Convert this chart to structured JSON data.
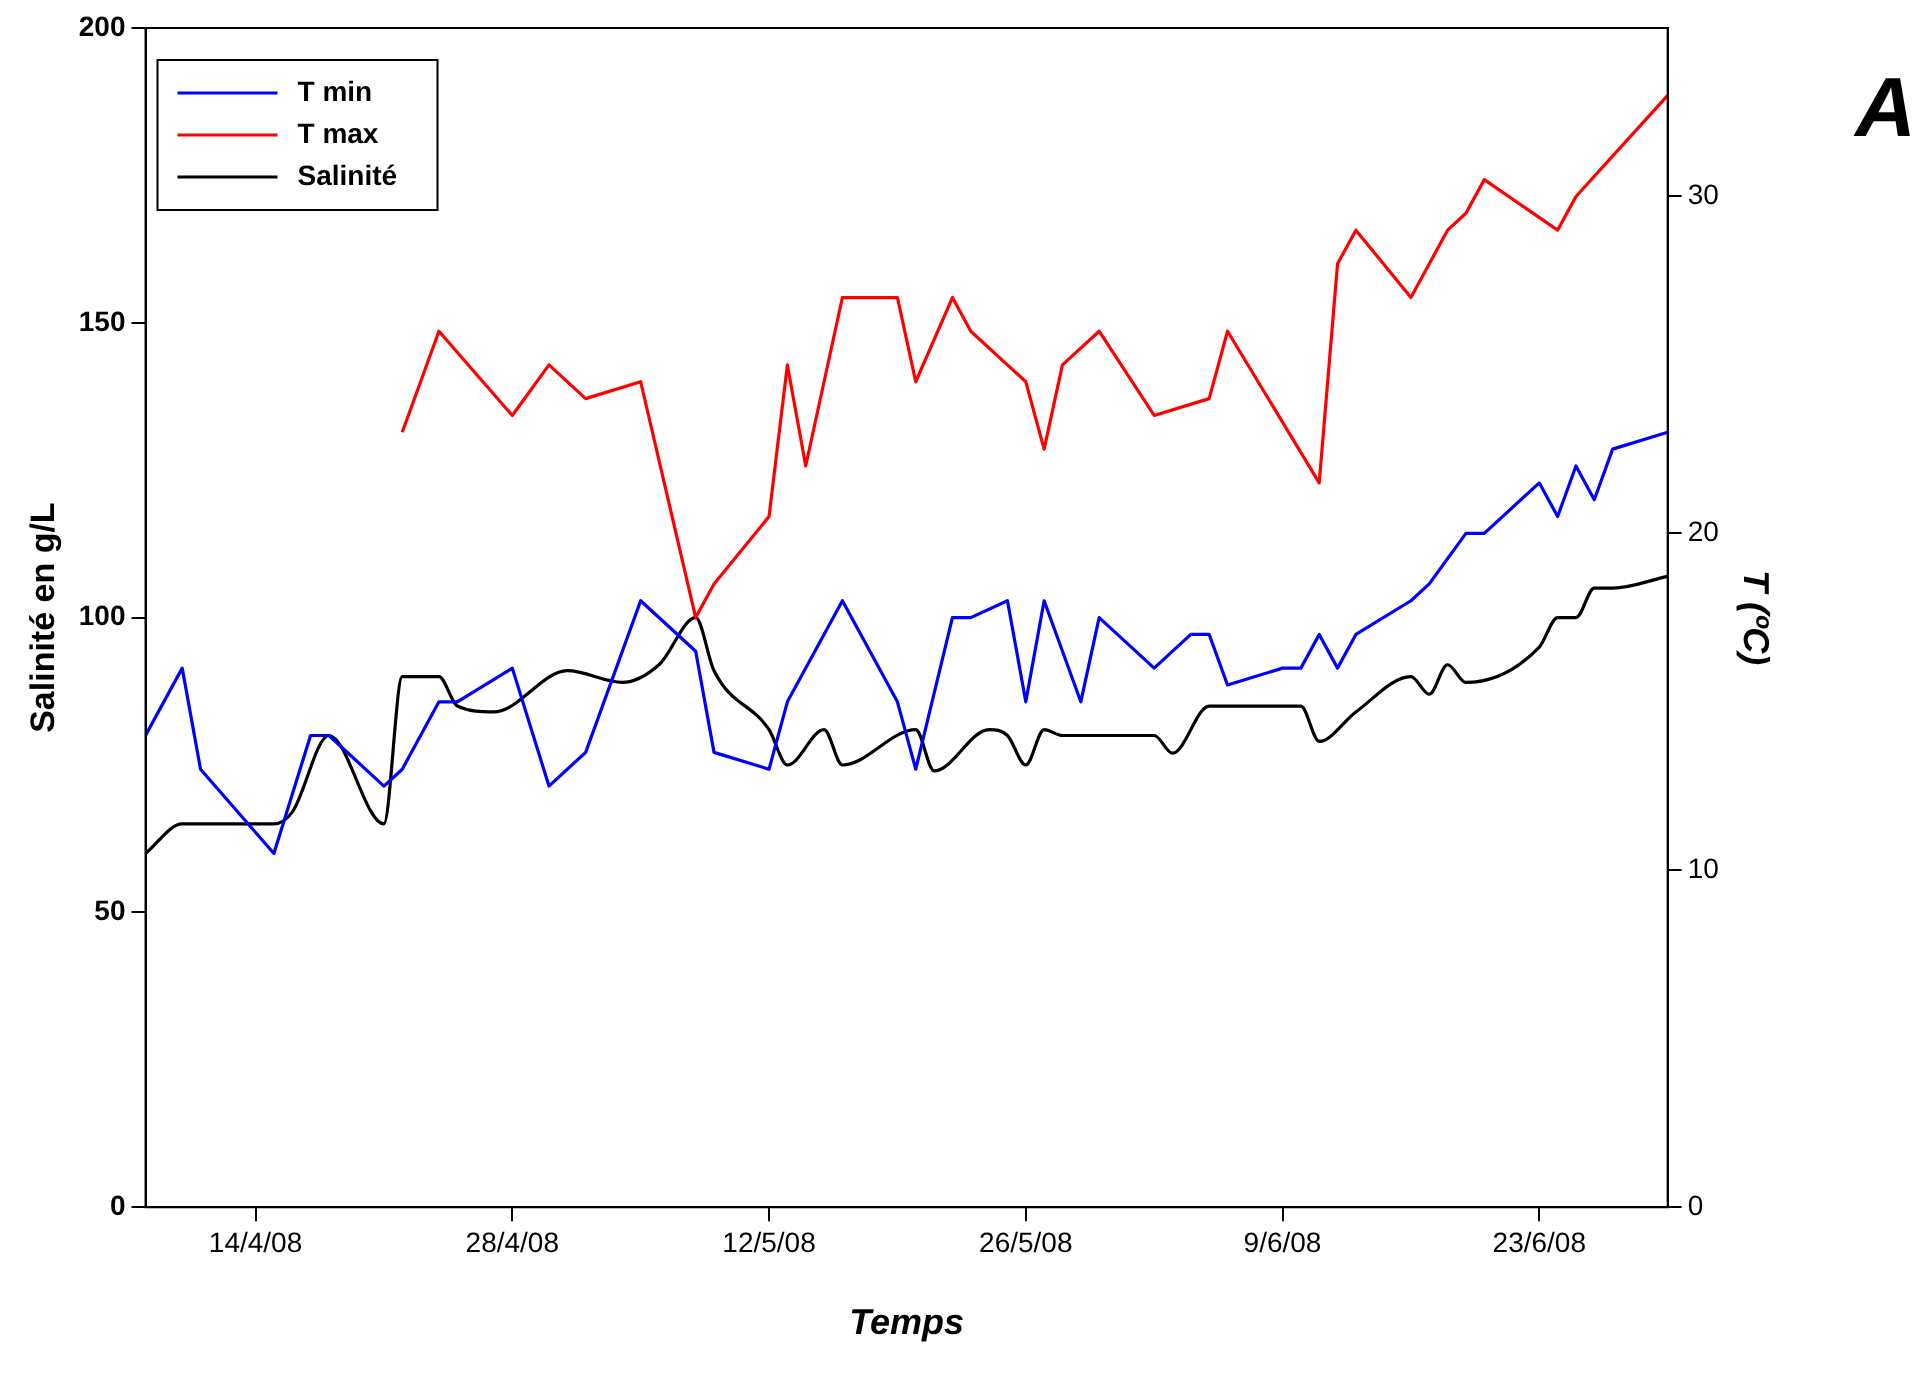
{
  "chart_data": {
    "type": "line",
    "title": "A",
    "xlabel": "Temps",
    "ylabel": "Salinité en g/L",
    "y2label": "T (ºC)",
    "xlim": [
      "--04-08",
      "--06-30"
    ],
    "xticks": [
      {
        "value": "--04-14",
        "label": "14/4/08"
      },
      {
        "value": "--04-28",
        "label": "28/4/08"
      },
      {
        "value": "--05-12",
        "label": "12/5/08"
      },
      {
        "value": "--05-26",
        "label": "26/5/08"
      },
      {
        "value": "--06-09",
        "label": "9/6/08"
      },
      {
        "value": "--06-23",
        "label": "23/6/08"
      }
    ],
    "ylim": [
      0,
      200
    ],
    "yticks": [
      0,
      50,
      100,
      150,
      200
    ],
    "y2lim": [
      0,
      35
    ],
    "y2ticks": [
      0,
      10,
      20,
      30
    ],
    "grid": false,
    "legend": "top left",
    "marker": "none",
    "line_style": "solid",
    "series": [
      {
        "name": "T min",
        "color": "#0000ff",
        "axis": "y2",
        "x": [
          "--04-08",
          "--04-10",
          "--04-11",
          "--04-15",
          "--04-17",
          "--04-18",
          "--04-21",
          "--04-22",
          "--04-24",
          "--04-25",
          "--04-28",
          "--04-30",
          "--05-02",
          "--05-05",
          "--05-08",
          "--05-09",
          "--05-12",
          "--05-13",
          "--05-16",
          "--05-19",
          "--05-20",
          "--05-22",
          "--05-23",
          "--05-25",
          "--05-26",
          "--05-27",
          "--05-29",
          "--05-30",
          "--06-02",
          "--06-04",
          "--06-05",
          "--06-06",
          "--06-09",
          "--06-10",
          "--06-11",
          "--06-12",
          "--06-13",
          "--06-16",
          "--06-17",
          "--06-19",
          "--06-20",
          "--06-23",
          "--06-24",
          "--06-25",
          "--06-26",
          "--06-27",
          "--06-30"
        ],
        "values": [
          14,
          16,
          13,
          10.5,
          14,
          14,
          12.5,
          13,
          15,
          15,
          16,
          12.5,
          13.5,
          18,
          16.5,
          13.5,
          13,
          15,
          18,
          15,
          13,
          17.5,
          17.5,
          18,
          15,
          18,
          15,
          17.5,
          16,
          17,
          17,
          15.5,
          16,
          16,
          17,
          16,
          17,
          18,
          18.5,
          20,
          20,
          21.5,
          20.5,
          22,
          21,
          22.5,
          23
        ]
      },
      {
        "name": "T max",
        "color": "#ff0000",
        "axis": "y2",
        "x": [
          "--04-22",
          "--04-24",
          "--04-28",
          "--04-30",
          "--05-02",
          "--05-05",
          "--05-08",
          "--05-09",
          "--05-12",
          "--05-13",
          "--05-14",
          "--05-16",
          "--05-19",
          "--05-20",
          "--05-22",
          "--05-23",
          "--05-26",
          "--05-27",
          "--05-28",
          "--05-30",
          "--06-02",
          "--06-05",
          "--06-06",
          "--06-11",
          "--06-12",
          "--06-13",
          "--06-16",
          "--06-18",
          "--06-19",
          "--06-20",
          "--06-24",
          "--06-25",
          "--06-30"
        ],
        "values": [
          23,
          26,
          23.5,
          25,
          24,
          24.5,
          17.5,
          18.5,
          20.5,
          25,
          22,
          27,
          27,
          24.5,
          27,
          26,
          24.5,
          22.5,
          25,
          26,
          23.5,
          24,
          26,
          21.5,
          28,
          29,
          27,
          29,
          29.5,
          30.5,
          29,
          30,
          33
        ]
      },
      {
        "name": "Salinité",
        "color": "#000000",
        "x": [
          "--04-08",
          "--04-10",
          "--04-15",
          "--04-16",
          "--04-18",
          "--04-21",
          "--04-22",
          "--04-24",
          "--04-25",
          "--04-27",
          "--05-01",
          "--05-04",
          "--05-06",
          "--05-08",
          "--05-09",
          "--05-12",
          "--05-13",
          "--05-15",
          "--05-16",
          "--05-20",
          "--05-21",
          "--05-24",
          "--05-25",
          "--05-26",
          "--05-27",
          "--05-28",
          "--06-02",
          "--06-03",
          "--06-05",
          "--06-10",
          "--06-11",
          "--06-13",
          "--06-16",
          "--06-17",
          "--06-18",
          "--06-19",
          "--06-23",
          "--06-24",
          "--06-25",
          "--06-26",
          "--06-27",
          "--06-30"
        ],
        "values": [
          60,
          65,
          65,
          67,
          80,
          65,
          90,
          90,
          85,
          84,
          91,
          89,
          92,
          100,
          91,
          81,
          75,
          81,
          75,
          81,
          74,
          81,
          80,
          75,
          81,
          80,
          80,
          77,
          85,
          85,
          79,
          84,
          90,
          87,
          92,
          89,
          95,
          100,
          100,
          105,
          105,
          107
        ]
      }
    ]
  }
}
